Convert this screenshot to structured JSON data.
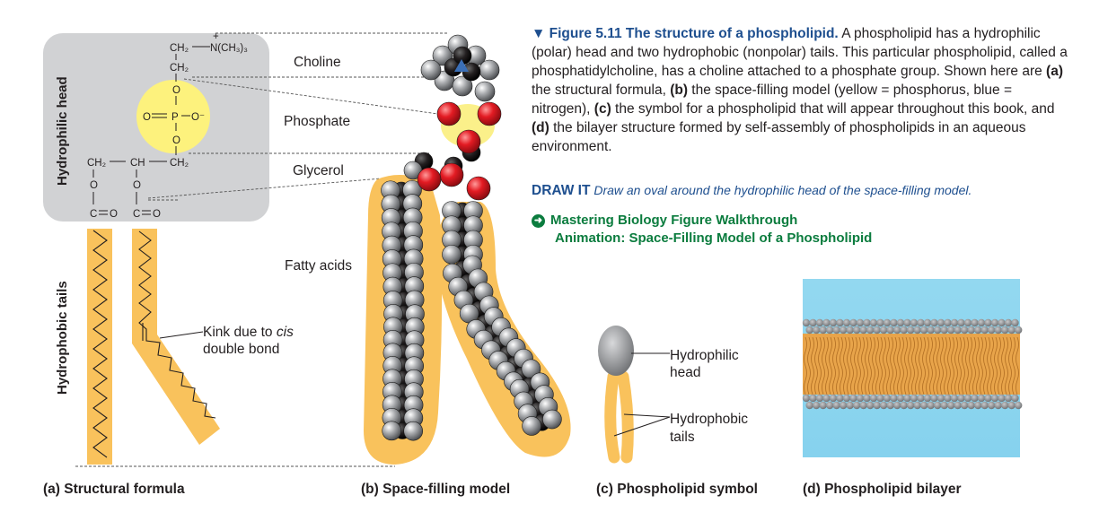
{
  "caption": {
    "fig_title": "▼ Figure 5.11  The structure of a phospholipid.",
    "parts": [
      " A phospholipid has a hydrophilic (polar) head and two hydrophobic (nonpolar) tails. This particular phospholipid, called a phosphatidylcholine, has a choline attached to a phosphate group. Shown here are ",
      "(a)",
      " the structural formula, ",
      "(b)",
      " the space-filling model (yellow = phosphorus, blue = nitrogen), ",
      "(c)",
      " the symbol for a phospholipid that will appear throughout this book, and ",
      "(d)",
      " the bilayer structure formed by self-assembly of phospholipids in an aqueous environment."
    ]
  },
  "draw_it": {
    "head": "DRAW IT",
    "text": "Draw an oval around the hydrophilic head of the space-filling model."
  },
  "mastering": {
    "line1_a": "Mastering Biology",
    "line1_b": "Figure Walkthrough",
    "line2": "Animation: Space-Filling Model of a Phospholipid"
  },
  "side_labels": {
    "head": "Hydrophilic head",
    "tails": "Hydrophobic tails"
  },
  "formula": {
    "choline_ch2": "CH₂",
    "choline_n": "N(CH₃)₃",
    "n_charge": "+",
    "ch2_2": "CH₂",
    "o_top": "O",
    "phosphate_o_left": "O",
    "p": "P",
    "o_minus": "O⁻",
    "o_bottom": "O",
    "glycerol": [
      "CH₂",
      "CH",
      "CH₂"
    ],
    "ester_o": [
      "O",
      "O"
    ],
    "carbonyl": [
      "C",
      "O",
      "C",
      "O"
    ]
  },
  "part_labels": {
    "choline": "Choline",
    "phosphate": "Phosphate",
    "glycerol": "Glycerol",
    "fatty_acids": "Fatty acids",
    "kink_1": "Kink due to",
    "kink_cis": "cis",
    "kink_2": "double bond"
  },
  "symbol_labels": {
    "head_1": "Hydrophilic",
    "head_2": "head",
    "tails_1": "Hydrophobic",
    "tails_2": "tails"
  },
  "panel_captions": {
    "a": "(a) Structural formula",
    "b": "(b) Space-filling model",
    "c": "(c) Phospholipid symbol",
    "d": "(d) Phospholipid bilayer"
  },
  "colors": {
    "tail_orange": "#f9c25c",
    "head_gray": "#cfd0d2",
    "phosphorus_yellow": "#fbf08a",
    "oxygen_red": "#e31b23",
    "nitrogen_blue": "#3b6fb6",
    "carbon_black": "#231f20",
    "hydrogen_gray": "#8d8f92",
    "water_blue": "#8fd6ef",
    "title_blue": "#1e4f8f",
    "mastering_green": "#0b7c3e"
  }
}
